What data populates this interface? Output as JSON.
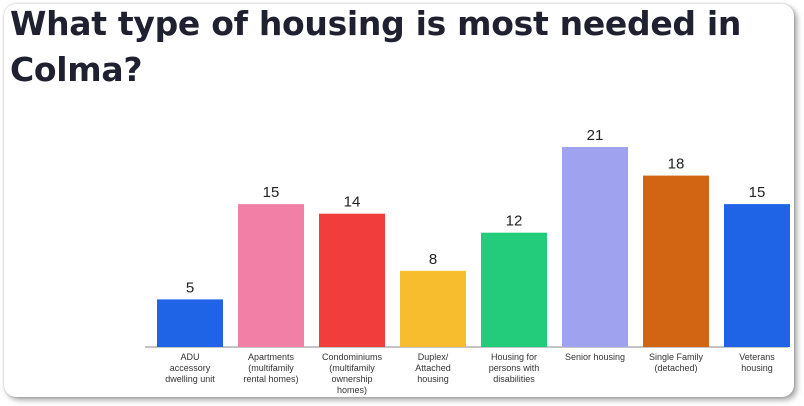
{
  "chart_data": {
    "type": "bar",
    "title": "What type of housing is most needed in Colma?",
    "categories": [
      "ADU accessory dwelling unit",
      "Apartments (multifamily rental homes)",
      "Condominiums (multifamily ownership homes)",
      "Duplex/ Attached housing",
      "Housing for persons with disabilities",
      "Senior housing",
      "Single Family (detached)",
      "Veterans housing"
    ],
    "category_lines": [
      [
        "ADU",
        "accessory",
        "dwelling unit"
      ],
      [
        "Apartments",
        "(multifamily",
        "rental homes)"
      ],
      [
        "Condominiums",
        "(multifamily",
        "ownership",
        "homes)"
      ],
      [
        "Duplex/",
        "Attached",
        "housing"
      ],
      [
        "Housing for",
        "persons with",
        "disabilities"
      ],
      [
        "Senior housing"
      ],
      [
        "Single Family",
        "(detached)"
      ],
      [
        "Veterans",
        "housing"
      ]
    ],
    "values": [
      5,
      15,
      14,
      8,
      12,
      21,
      18,
      15
    ],
    "colors": [
      "#1f63e6",
      "#f27fa6",
      "#f23d3d",
      "#f8bd2f",
      "#22cc7a",
      "#9ea2ef",
      "#d26514",
      "#1f63e6"
    ],
    "xlabel": "",
    "ylabel": "",
    "ylim": [
      0,
      21
    ],
    "grid": false,
    "legend": "none"
  }
}
